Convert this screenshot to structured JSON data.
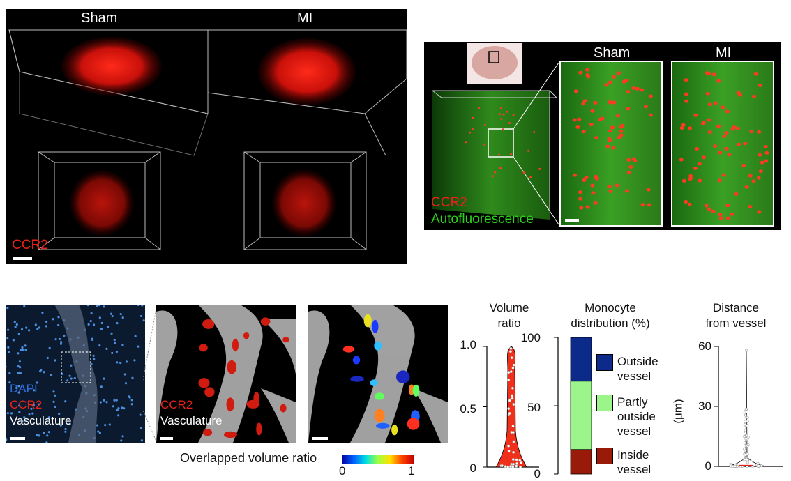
{
  "panelA": {
    "sham_label": "Sham",
    "mi_label": "MI",
    "stain_label": "CCR2"
  },
  "panelB": {
    "sham_label": "Sham",
    "mi_label": "MI",
    "stain_label": "CCR2",
    "auto_label": "Autofluorescence"
  },
  "panelC": {
    "dapi_label": "DAPI",
    "ccr2_label": "CCR2",
    "vasc_label": "Vasculature",
    "ccr2_label2": "CCR2",
    "vasc_label2": "Vasculature",
    "colorbar_title": "Overlapped volume ratio",
    "colorbar_min": "0",
    "colorbar_max": "1"
  },
  "colors": {
    "red_stain": "#e8221a",
    "green_stain": "#2bd41a",
    "outside": "#0c2a8a",
    "partly": "#9cf58a",
    "inside": "#9a1a0a"
  },
  "chart_data": [
    {
      "type": "violin",
      "title": "Volume ratio",
      "title_line1": "Volume",
      "title_line2": "ratio",
      "ylim": [
        0,
        1.0
      ],
      "yticks": [
        "0",
        "0.5",
        "1.0"
      ]
    },
    {
      "type": "bar",
      "title": "Monocyte distribution (%)",
      "title_line1": "Monocyte",
      "title_line2": "distribution (%)",
      "ylim": [
        0,
        100
      ],
      "yticks": [
        "0",
        "50",
        "100"
      ],
      "stacked": true,
      "series": [
        {
          "name": "Inside vessel",
          "name_lines": [
            "Inside",
            "vessel"
          ],
          "values": [
            18
          ],
          "color": "#9a1a0a"
        },
        {
          "name": "Partly outside vessel",
          "name_lines": [
            "Partly",
            "outside",
            "vessel"
          ],
          "values": [
            50
          ],
          "color": "#9cf58a"
        },
        {
          "name": "Outside vessel",
          "name_lines": [
            "Outside",
            "vessel"
          ],
          "values": [
            32
          ],
          "color": "#0c2a8a"
        }
      ]
    },
    {
      "type": "violin",
      "title": "Distance from vessel",
      "title_line1": "Distance",
      "title_line2": "from vessel",
      "ylabel": "(μm)",
      "ylim": [
        0,
        60
      ],
      "yticks": [
        "0",
        "30",
        "60"
      ]
    }
  ]
}
